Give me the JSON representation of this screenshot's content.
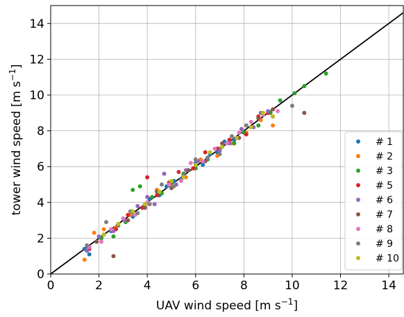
{
  "chart_data": {
    "type": "scatter",
    "xlabel": "UAV wind speed [m s",
    "xlabel_sup": "−1",
    "xlabel_tail": "]",
    "ylabel": "tower wind speed [m s",
    "ylabel_sup": "−1",
    "ylabel_tail": "]",
    "xlim": [
      0,
      14.6
    ],
    "ylim": [
      0,
      15
    ],
    "xticks": [
      0,
      2,
      4,
      6,
      8,
      10,
      12,
      14
    ],
    "yticks": [
      0,
      2,
      4,
      6,
      8,
      10,
      12,
      14
    ],
    "grid": true,
    "legend_position": "lower-right",
    "reference_line": {
      "x": [
        0,
        14.6
      ],
      "y": [
        0,
        14.6
      ],
      "color": "#000000"
    },
    "series": [
      {
        "name": "# 1",
        "color": "#1f77b4",
        "x": [
          1.4,
          1.6,
          2.1,
          2.5,
          3.0,
          3.4,
          3.8,
          4.1,
          4.5,
          4.8,
          5.1,
          5.4,
          5.7,
          6.0,
          6.3,
          6.6,
          6.9,
          7.2,
          7.6,
          8.0
        ],
        "y": [
          1.4,
          1.1,
          2.0,
          2.4,
          3.1,
          3.2,
          3.7,
          4.2,
          4.4,
          4.9,
          5.2,
          5.3,
          5.8,
          6.2,
          6.1,
          6.7,
          6.8,
          7.4,
          7.5,
          7.9
        ]
      },
      {
        "name": "# 2",
        "color": "#ff7f0e",
        "x": [
          1.4,
          1.8,
          2.2,
          2.7,
          3.3,
          3.9,
          4.4,
          5.0,
          5.6,
          6.2,
          6.9,
          7.5,
          8.1,
          8.7,
          9.2
        ],
        "y": [
          0.8,
          2.3,
          2.5,
          2.6,
          3.3,
          3.8,
          4.7,
          5.0,
          5.4,
          6.4,
          6.6,
          7.3,
          7.9,
          8.6,
          8.3
        ]
      },
      {
        "name": "# 3",
        "color": "#2ca02c",
        "x": [
          2.1,
          2.6,
          3.1,
          3.4,
          3.7,
          4.2,
          4.6,
          5.0,
          5.5,
          6.0,
          6.5,
          7.0,
          7.6,
          8.0,
          8.6,
          9.1,
          9.5,
          10.1,
          10.5,
          11.4
        ],
        "y": [
          2.0,
          2.1,
          2.9,
          4.7,
          4.9,
          4.3,
          4.5,
          5.1,
          5.6,
          5.9,
          6.4,
          7.0,
          7.3,
          7.9,
          8.3,
          9.0,
          9.7,
          10.1,
          10.5,
          11.2
        ]
      },
      {
        "name": "# 5",
        "color": "#d62728",
        "x": [
          1.6,
          2.2,
          2.7,
          3.2,
          3.8,
          4.0,
          4.4,
          4.9,
          5.3,
          5.9,
          6.4,
          6.9,
          7.4,
          8.1,
          8.6,
          9.0
        ],
        "y": [
          1.4,
          2.2,
          2.5,
          3.3,
          3.7,
          5.4,
          4.4,
          5.1,
          5.7,
          5.9,
          6.8,
          7.0,
          7.5,
          7.8,
          8.8,
          9.0
        ]
      },
      {
        "name": "# 6",
        "color": "#9467bd",
        "x": [
          1.5,
          2.0,
          2.6,
          3.1,
          3.6,
          4.0,
          4.3,
          4.7,
          5.2,
          5.6,
          6.1,
          6.5,
          7.0,
          7.4,
          7.9,
          8.4,
          9.0
        ],
        "y": [
          1.3,
          2.1,
          2.4,
          3.0,
          3.8,
          4.3,
          3.9,
          5.6,
          5.0,
          5.8,
          6.3,
          6.5,
          6.9,
          7.3,
          8.1,
          8.2,
          9.1
        ]
      },
      {
        "name": "# 7",
        "color": "#8c564b",
        "x": [
          1.9,
          2.6,
          3.2,
          3.9,
          4.4,
          5.0,
          5.7,
          6.4,
          7.1,
          7.8,
          8.6,
          9.2,
          10.5
        ],
        "y": [
          1.8,
          1.0,
          3.0,
          3.7,
          4.6,
          4.8,
          5.8,
          6.3,
          7.3,
          7.6,
          8.7,
          9.2,
          9.0
        ]
      },
      {
        "name": "# 8",
        "color": "#e377c2",
        "x": [
          1.6,
          2.1,
          2.5,
          3.0,
          3.5,
          4.0,
          4.5,
          4.9,
          5.4,
          5.8,
          6.3,
          6.8,
          7.3,
          7.8,
          8.3,
          8.8,
          9.4
        ],
        "y": [
          1.5,
          1.8,
          2.5,
          3.1,
          3.3,
          4.0,
          4.6,
          5.0,
          5.2,
          6.2,
          6.3,
          7.0,
          7.3,
          7.9,
          8.5,
          8.9,
          9.1
        ]
      },
      {
        "name": "# 9",
        "color": "#7f7f7f",
        "x": [
          1.5,
          2.3,
          2.8,
          3.3,
          3.6,
          4.1,
          4.6,
          5.1,
          5.5,
          6.0,
          6.5,
          7.0,
          7.5,
          8.1,
          8.7,
          9.2,
          10.0
        ],
        "y": [
          1.6,
          2.9,
          2.7,
          3.5,
          3.4,
          3.9,
          5.0,
          4.9,
          5.5,
          6.4,
          6.5,
          6.7,
          7.7,
          8.3,
          9.0,
          8.8,
          9.4
        ]
      },
      {
        "name": "# 10",
        "color": "#bcbd22",
        "x": [
          2.2,
          2.8,
          3.4,
          3.9,
          4.5,
          5.0,
          5.5,
          6.0,
          6.6,
          7.1,
          7.7,
          8.3,
          8.8,
          9.2
        ],
        "y": [
          2.2,
          2.8,
          3.5,
          3.9,
          4.6,
          5.2,
          5.4,
          6.1,
          6.8,
          7.1,
          7.6,
          8.2,
          9.0,
          8.8
        ]
      }
    ]
  }
}
